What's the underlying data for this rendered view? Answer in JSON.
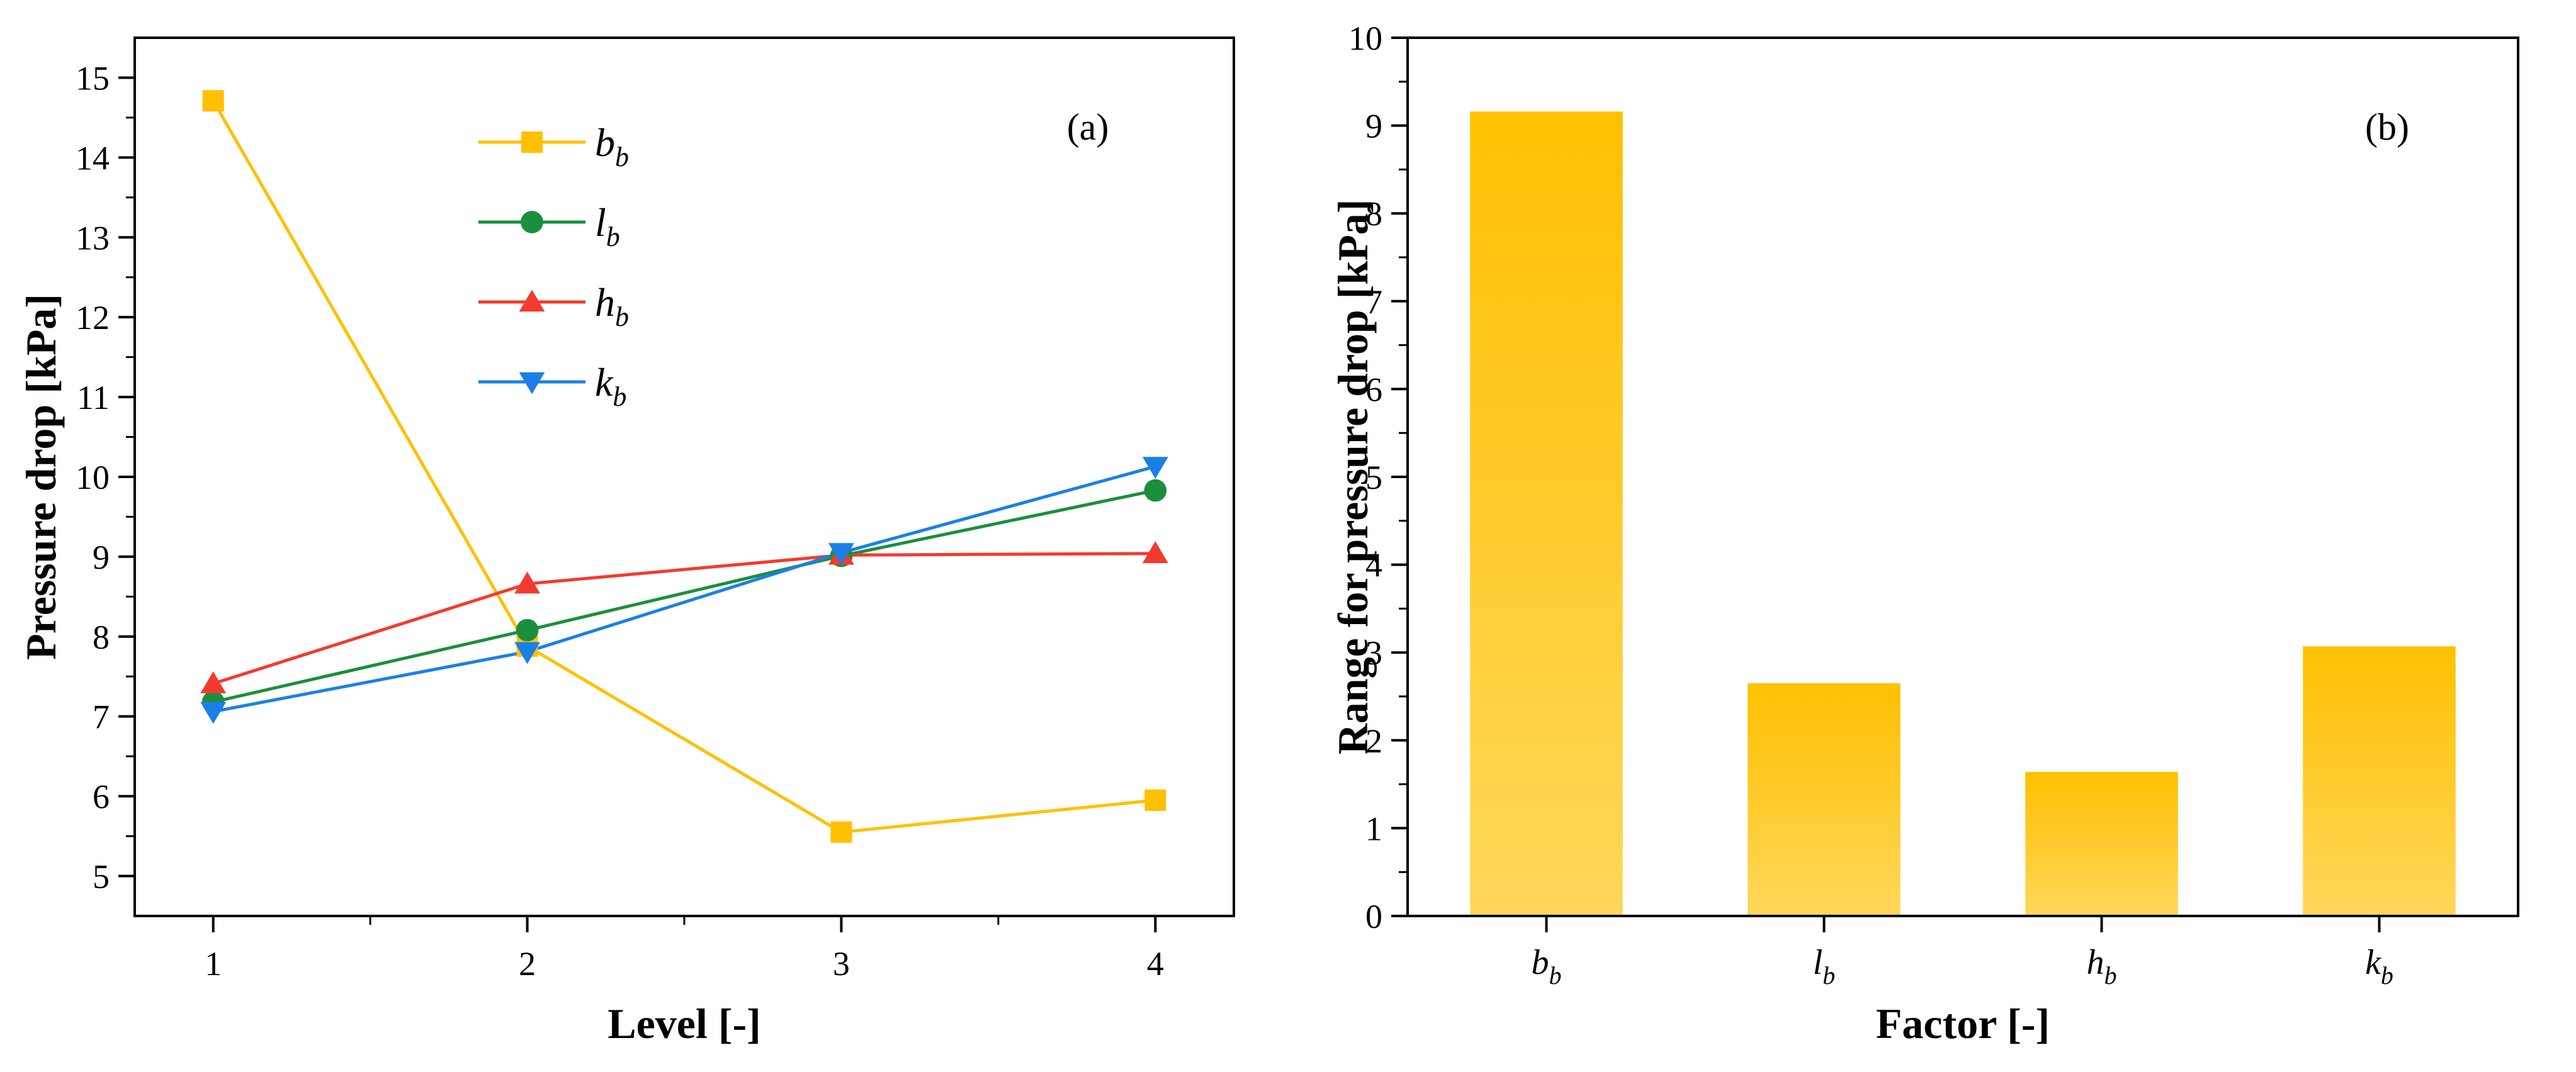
{
  "chart_data": [
    {
      "type": "line",
      "panel_label": "(a)",
      "xlabel": "Level [-]",
      "ylabel": "Pressure drop [kPa]",
      "x": [
        1,
        2,
        3,
        4
      ],
      "xlim": [
        0.75,
        4.25
      ],
      "ylim": [
        4.5,
        15.5
      ],
      "xticks": [
        1,
        2,
        3,
        4
      ],
      "yticks": [
        5,
        6,
        7,
        8,
        9,
        10,
        11,
        12,
        13,
        14,
        15
      ],
      "legend_position": "top-center",
      "series": [
        {
          "name": "b",
          "subscript": "b",
          "color": "#FFC000",
          "marker": "square",
          "values": [
            14.71,
            7.88,
            5.55,
            5.95
          ]
        },
        {
          "name": "l",
          "subscript": "b",
          "color": "#1A8F3C",
          "marker": "circle",
          "values": [
            7.18,
            8.08,
            9.01,
            9.83
          ]
        },
        {
          "name": "h",
          "subscript": "b",
          "color": "#F23B2E",
          "marker": "triangle-up",
          "values": [
            7.41,
            8.66,
            9.02,
            9.04
          ]
        },
        {
          "name": "k",
          "subscript": "b",
          "color": "#1A80E6",
          "marker": "triangle-down",
          "values": [
            7.06,
            7.81,
            9.05,
            10.13
          ]
        }
      ]
    },
    {
      "type": "bar",
      "panel_label": "(b)",
      "xlabel": "Factor [-]",
      "ylabel": "Range for pressure drop [kPa]",
      "categories": [
        "b",
        "l",
        "h",
        "k"
      ],
      "category_subscript": "b",
      "values": [
        9.16,
        2.65,
        1.64,
        3.07
      ],
      "ylim": [
        0,
        10
      ],
      "yticks": [
        0,
        1,
        2,
        3,
        4,
        5,
        6,
        7,
        8,
        9,
        10
      ],
      "bar_color_top": "#FFC000",
      "bar_color_bottom": "#FFD75A"
    }
  ]
}
